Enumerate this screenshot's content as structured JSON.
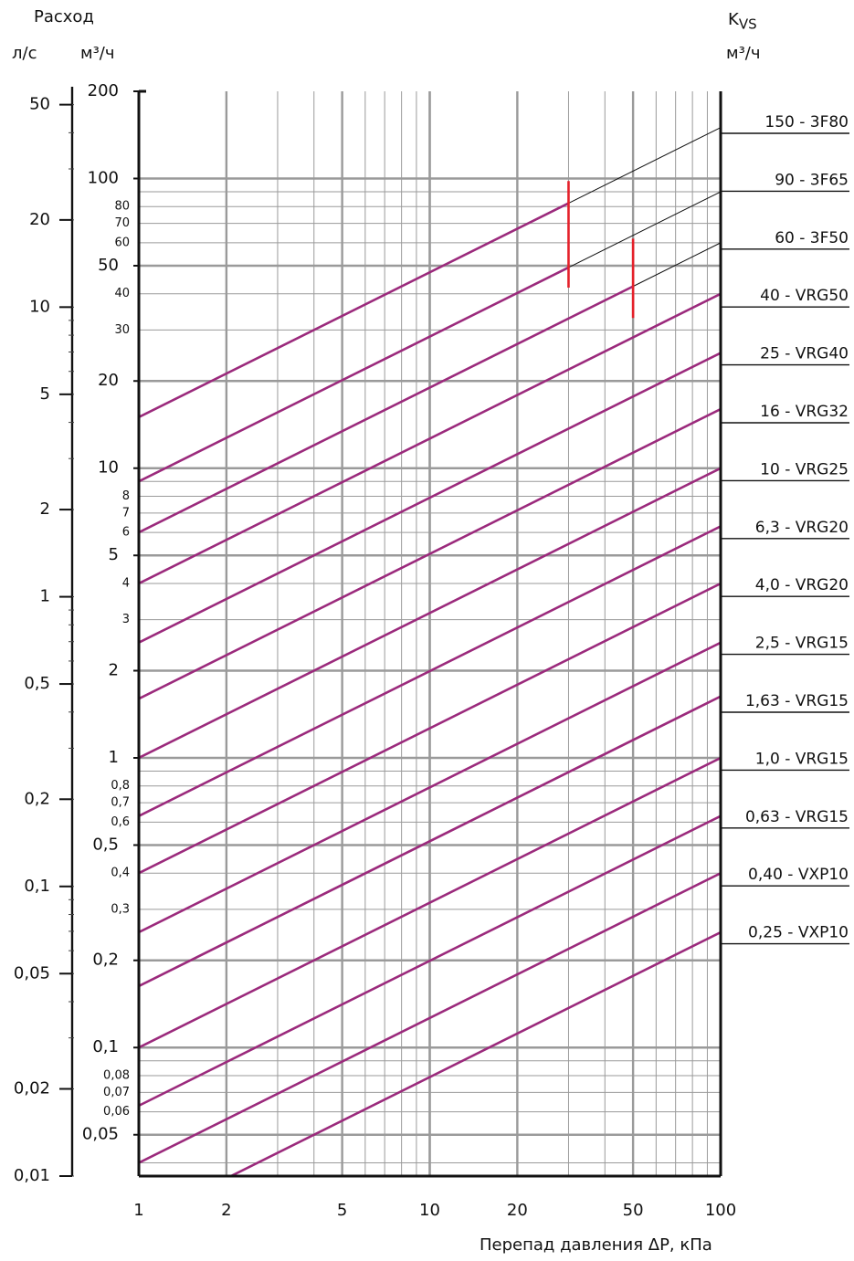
{
  "chart_data": {
    "type": "line",
    "xscale": "log",
    "yscale": "log",
    "xlabel": "Перепад давления ΔP, кПа",
    "left_title": "Расход",
    "left_unit_ls": "л/с",
    "left_unit_m3h": "м³/ч",
    "right_title": "K",
    "right_title_sub": "VS",
    "right_unit": "м³/ч",
    "xlim": [
      1,
      100
    ],
    "ylim_m3h": [
      0.036,
      200
    ],
    "ylim_ls": [
      0.01,
      55.6
    ],
    "x_ticks": [
      1,
      2,
      5,
      10,
      20,
      50,
      100
    ],
    "x_tick_labels": [
      "1",
      "2",
      "5",
      "10",
      "20",
      "50",
      "100"
    ],
    "y_ticks_major": [
      {
        "v": 200,
        "label": "200"
      },
      {
        "v": 100,
        "label": "100"
      },
      {
        "v": 50,
        "label": "50"
      },
      {
        "v": 20,
        "label": "20"
      },
      {
        "v": 10,
        "label": "10"
      },
      {
        "v": 5,
        "label": "5"
      },
      {
        "v": 2,
        "label": "2"
      },
      {
        "v": 1,
        "label": "1"
      },
      {
        "v": 0.5,
        "label": "0,5"
      },
      {
        "v": 0.2,
        "label": "0,2"
      },
      {
        "v": 0.1,
        "label": "0,1"
      },
      {
        "v": 0.05,
        "label": "0,05"
      }
    ],
    "y_ticks_minor": [
      {
        "v": 80,
        "label": "80"
      },
      {
        "v": 70,
        "label": "70"
      },
      {
        "v": 60,
        "label": "60"
      },
      {
        "v": 40,
        "label": "40"
      },
      {
        "v": 30,
        "label": "30"
      },
      {
        "v": 8,
        "label": "8"
      },
      {
        "v": 7,
        "label": "7"
      },
      {
        "v": 6,
        "label": "6"
      },
      {
        "v": 4,
        "label": "4"
      },
      {
        "v": 3,
        "label": "3"
      },
      {
        "v": 0.8,
        "label": "0,8"
      },
      {
        "v": 0.7,
        "label": "0,7"
      },
      {
        "v": 0.6,
        "label": "0,6"
      },
      {
        "v": 0.4,
        "label": "0,4"
      },
      {
        "v": 0.3,
        "label": "0,3"
      },
      {
        "v": 0.08,
        "label": "0,08"
      },
      {
        "v": 0.07,
        "label": "0,07"
      },
      {
        "v": 0.06,
        "label": "0,06"
      }
    ],
    "ls_ticks": [
      {
        "v": 50,
        "label": "50"
      },
      {
        "v": 20,
        "label": "20"
      },
      {
        "v": 10,
        "label": "10"
      },
      {
        "v": 5,
        "label": "5"
      },
      {
        "v": 2,
        "label": "2"
      },
      {
        "v": 1,
        "label": "1"
      },
      {
        "v": 0.5,
        "label": "0,5"
      },
      {
        "v": 0.2,
        "label": "0,2"
      },
      {
        "v": 0.1,
        "label": "0,1"
      },
      {
        "v": 0.05,
        "label": "0,05"
      },
      {
        "v": 0.02,
        "label": "0,02"
      },
      {
        "v": 0.01,
        "label": "0,01"
      }
    ],
    "series": [
      {
        "name": "150 - 3F80",
        "kvs": 150,
        "limit_kpa": 30
      },
      {
        "name": "90 - 3F65",
        "kvs": 90,
        "limit_kpa": 30
      },
      {
        "name": "60 - 3F50",
        "kvs": 60,
        "limit_kpa": 50
      },
      {
        "name": "40 - VRG50",
        "kvs": 40
      },
      {
        "name": "25 - VRG40",
        "kvs": 25
      },
      {
        "name": "16 - VRG32",
        "kvs": 16
      },
      {
        "name": "10 - VRG25",
        "kvs": 10
      },
      {
        "name": "6,3 - VRG20",
        "kvs": 6.3
      },
      {
        "name": "4,0 - VRG20",
        "kvs": 4.0
      },
      {
        "name": "2,5 - VRG15",
        "kvs": 2.5
      },
      {
        "name": "1,63 - VRG15",
        "kvs": 1.63
      },
      {
        "name": "1,0 - VRG15",
        "kvs": 1.0
      },
      {
        "name": "0,63 - VRG15",
        "kvs": 0.63
      },
      {
        "name": "0,40 - VXP10",
        "kvs": 0.4
      },
      {
        "name": "0,25 - VXP10",
        "kvs": 0.25
      }
    ],
    "limit_markers": [
      {
        "x_kpa": 30,
        "y_from": 42,
        "y_to": 98
      },
      {
        "x_kpa": 50,
        "y_from": 33,
        "y_to": 62
      }
    ],
    "colors": {
      "line": "#9b2a7c",
      "grid": "#9a9a9a",
      "marker": "#e5202a",
      "leader": "#111111"
    }
  }
}
